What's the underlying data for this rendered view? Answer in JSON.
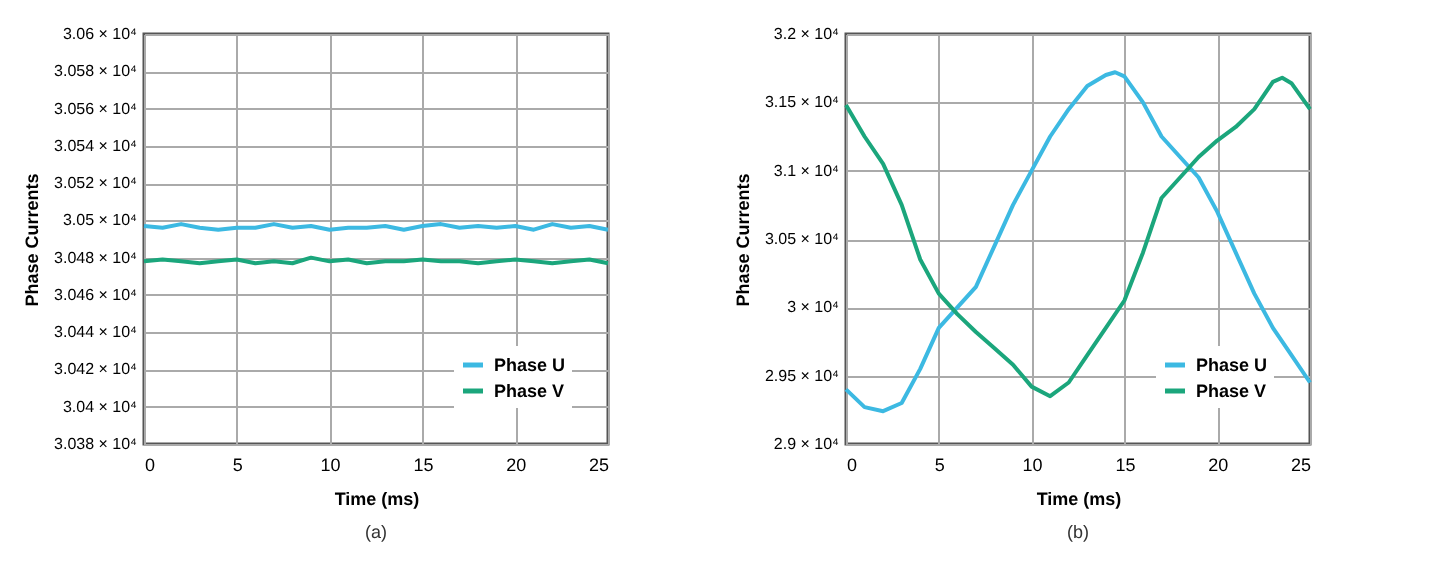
{
  "chart_data": [
    {
      "type": "line",
      "xlabel": "Time (ms)",
      "ylabel": "Phase Currents",
      "annotations": [
        "(a)"
      ],
      "xlim": [
        0,
        25
      ],
      "xticks": [
        0,
        5,
        10,
        15,
        20,
        25
      ],
      "ylim": [
        30380,
        30600
      ],
      "yticks": [
        {
          "value": 30380,
          "label": "3.038 × 10⁴"
        },
        {
          "value": 30400,
          "label": "3.04 × 10⁴"
        },
        {
          "value": 30420,
          "label": "3.042 × 10⁴"
        },
        {
          "value": 30440,
          "label": "3.044 × 10⁴"
        },
        {
          "value": 30460,
          "label": "3.046 × 10⁴"
        },
        {
          "value": 30480,
          "label": "3.048 × 10⁴"
        },
        {
          "value": 30500,
          "label": "3.05 × 10⁴"
        },
        {
          "value": 30520,
          "label": "3.052 × 10⁴"
        },
        {
          "value": 30540,
          "label": "3.054 × 10⁴"
        },
        {
          "value": 30560,
          "label": "3.056 × 10⁴"
        },
        {
          "value": 30580,
          "label": "3.058 × 10⁴"
        },
        {
          "value": 30600,
          "label": "3.06 × 10⁴"
        }
      ],
      "grid": true,
      "legend": "bottom right",
      "x": [
        0,
        1,
        2,
        3,
        4,
        5,
        6,
        7,
        8,
        9,
        10,
        11,
        12,
        13,
        14,
        15,
        16,
        17,
        18,
        19,
        20,
        21,
        22,
        23,
        24,
        25
      ],
      "series": [
        {
          "name": "Phase U",
          "color": "#3cb9e2",
          "values": [
            30497,
            30496,
            30498,
            30496,
            30495,
            30496,
            30496,
            30498,
            30496,
            30497,
            30495,
            30496,
            30496,
            30497,
            30495,
            30497,
            30498,
            30496,
            30497,
            30496,
            30497,
            30495,
            30498,
            30496,
            30497,
            30495
          ]
        },
        {
          "name": "Phase V",
          "color": "#1ba67c",
          "values": [
            30478,
            30479,
            30478,
            30477,
            30478,
            30479,
            30477,
            30478,
            30477,
            30480,
            30478,
            30479,
            30477,
            30478,
            30478,
            30479,
            30478,
            30478,
            30477,
            30478,
            30479,
            30478,
            30477,
            30478,
            30479,
            30477
          ]
        }
      ]
    },
    {
      "type": "line",
      "xlabel": "Time (ms)",
      "ylabel": "Phase Currents",
      "annotations": [
        "(b)"
      ],
      "xlim": [
        0,
        25
      ],
      "xticks": [
        0,
        5,
        10,
        15,
        20,
        25
      ],
      "ylim": [
        29000,
        32000
      ],
      "yticks": [
        {
          "value": 29000,
          "label": "2.9 × 10⁴"
        },
        {
          "value": 29500,
          "label": "2.95 × 10⁴"
        },
        {
          "value": 30000,
          "label": "3 × 10⁴"
        },
        {
          "value": 30500,
          "label": "3.05 × 10⁴"
        },
        {
          "value": 31000,
          "label": "3.1 × 10⁴"
        },
        {
          "value": 31500,
          "label": "3.15 × 10⁴"
        },
        {
          "value": 32000,
          "label": "3.2 × 10⁴"
        }
      ],
      "grid": true,
      "legend": "bottom right",
      "series": [
        {
          "name": "Phase U",
          "color": "#3cb9e2",
          "x": [
            0,
            1,
            2,
            3,
            4,
            5,
            6,
            7,
            8,
            9,
            10,
            11,
            12,
            13,
            14,
            14.5,
            15,
            16,
            17,
            18,
            19,
            20,
            21,
            22,
            23,
            24,
            25
          ],
          "values": [
            29400,
            29270,
            29240,
            29300,
            29550,
            29850,
            30000,
            30150,
            30450,
            30750,
            31000,
            31250,
            31450,
            31620,
            31700,
            31720,
            31690,
            31500,
            31250,
            31100,
            30950,
            30700,
            30400,
            30100,
            29850,
            29650,
            29450
          ]
        },
        {
          "name": "Phase V",
          "color": "#1ba67c",
          "x": [
            0,
            1,
            2,
            3,
            4,
            5,
            6,
            7,
            8,
            9,
            10,
            11,
            12,
            13,
            14,
            15,
            16,
            17,
            18,
            19,
            20,
            21,
            22,
            23,
            23.5,
            24,
            25
          ],
          "values": [
            31480,
            31250,
            31050,
            30750,
            30350,
            30100,
            29950,
            29820,
            29700,
            29580,
            29420,
            29350,
            29450,
            29650,
            29850,
            30050,
            30400,
            30800,
            30950,
            31100,
            31220,
            31320,
            31450,
            31650,
            31680,
            31640,
            31450
          ]
        }
      ]
    }
  ]
}
